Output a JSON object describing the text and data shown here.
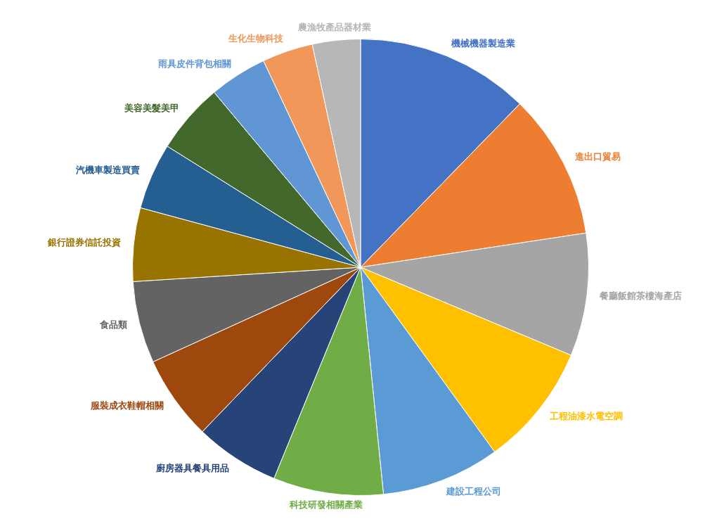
{
  "chart_data": {
    "type": "pie",
    "categories": [
      "機械機器製造業",
      "進出口貿易",
      "餐廳飯館茶樓海產店",
      "工程油漆水電空調",
      "建設工程公司",
      "科技研發相關產業",
      "廚房器具餐具用品",
      "服裝成衣鞋帽相關",
      "食品類",
      "銀行證券信託投資",
      "汽機車製造買賣",
      "美容美髮美甲",
      "雨具皮件背包相關",
      "生化生物科技",
      "農漁牧產品器材業"
    ],
    "values": [
      12.3,
      10.3,
      8.7,
      8.7,
      8.4,
      7.8,
      6.0,
      6.0,
      5.8,
      5.2,
      4.7,
      5.0,
      4.1,
      3.6,
      3.4
    ],
    "colors": [
      "#4472c4",
      "#ed7d31",
      "#a5a5a5",
      "#ffc000",
      "#5b9bd5",
      "#70ad47",
      "#264478",
      "#9e480e",
      "#636363",
      "#997300",
      "#255e91",
      "#43682b",
      "#6096d4",
      "#f1975a",
      "#b7b7b7"
    ],
    "legend": false
  }
}
